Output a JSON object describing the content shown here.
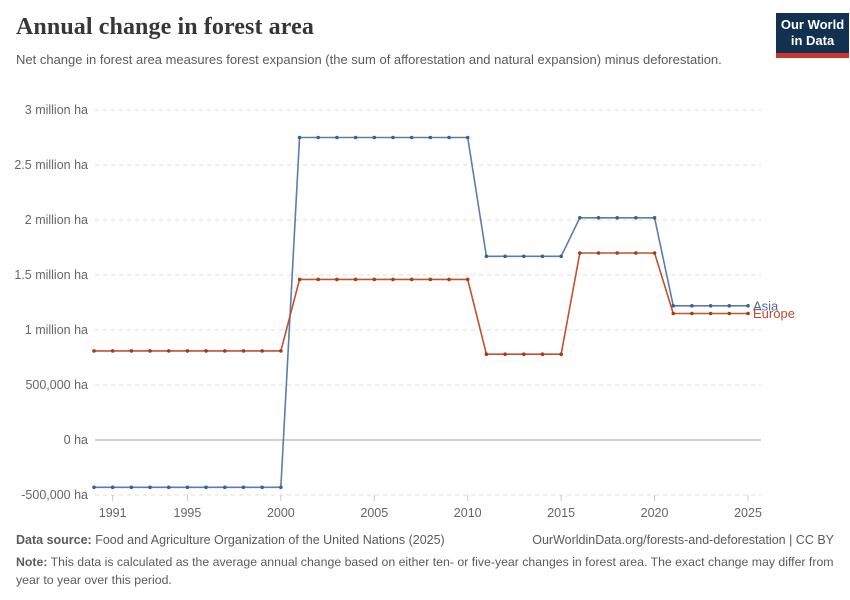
{
  "header": {
    "title": "Annual change in forest area",
    "subtitle": "Net change in forest area measures forest expansion (the sum of afforestation and natural expansion) minus deforestation.",
    "logo": {
      "line1": "Our World",
      "line2": "in Data"
    }
  },
  "colors": {
    "logo_navy": "#12304f",
    "logo_red": "#ce342f",
    "asia_line": "#5b7dab",
    "asia_dot": "#3a5f96",
    "asia_label": "#4c6a9c",
    "europe_line": "#c0522e",
    "europe_dot": "#a03c17",
    "europe_label": "#be4a29",
    "gridline": "#dcdcdc",
    "zero_line": "#9e9e9e",
    "axis_text": "#666666"
  },
  "chart_data": {
    "type": "line",
    "title": "Annual change in forest area",
    "xlabel": "",
    "ylabel": "",
    "xlim": [
      1990,
      2025
    ],
    "ylim": [
      -500000,
      3000000
    ],
    "grid": "dashed-horizontal",
    "legend_position": "right-end-labels",
    "x_ticks": [
      1991,
      1995,
      2000,
      2005,
      2010,
      2015,
      2020,
      2025
    ],
    "y_ticks": [
      {
        "value": 3000000,
        "label": "3 million ha"
      },
      {
        "value": 2500000,
        "label": "2.5 million ha"
      },
      {
        "value": 2000000,
        "label": "2 million ha"
      },
      {
        "value": 1500000,
        "label": "1.5 million ha"
      },
      {
        "value": 1000000,
        "label": "1 million ha"
      },
      {
        "value": 500000,
        "label": "500,000 ha"
      },
      {
        "value": 0,
        "label": "0 ha"
      },
      {
        "value": -500000,
        "label": "-500,000 ha"
      }
    ],
    "x": [
      1990,
      1991,
      1992,
      1993,
      1994,
      1995,
      1996,
      1997,
      1998,
      1999,
      2000,
      2001,
      2002,
      2003,
      2004,
      2005,
      2006,
      2007,
      2008,
      2009,
      2010,
      2011,
      2012,
      2013,
      2014,
      2015,
      2016,
      2017,
      2018,
      2019,
      2020,
      2021,
      2022,
      2023,
      2024,
      2025
    ],
    "series": [
      {
        "name": "Asia",
        "line_color": "#5b7dab",
        "dot_color": "#3a5f96",
        "label_color": "#4c6a9c",
        "values": [
          -430000,
          -430000,
          -430000,
          -430000,
          -430000,
          -430000,
          -430000,
          -430000,
          -430000,
          -430000,
          -430000,
          2750000,
          2750000,
          2750000,
          2750000,
          2750000,
          2750000,
          2750000,
          2750000,
          2750000,
          2750000,
          1670000,
          1670000,
          1670000,
          1670000,
          1670000,
          2020000,
          2020000,
          2020000,
          2020000,
          2020000,
          1220000,
          1220000,
          1220000,
          1220000,
          1220000
        ]
      },
      {
        "name": "Europe",
        "line_color": "#c0522e",
        "dot_color": "#a03c17",
        "label_color": "#be4a29",
        "values": [
          810000,
          810000,
          810000,
          810000,
          810000,
          810000,
          810000,
          810000,
          810000,
          810000,
          810000,
          1460000,
          1460000,
          1460000,
          1460000,
          1460000,
          1460000,
          1460000,
          1460000,
          1460000,
          1460000,
          780000,
          780000,
          780000,
          780000,
          780000,
          1700000,
          1700000,
          1700000,
          1700000,
          1700000,
          1150000,
          1150000,
          1150000,
          1150000,
          1150000
        ]
      }
    ]
  },
  "footer": {
    "source_label": "Data source:",
    "source_text": " Food and Agriculture Organization of the United Nations (2025)",
    "link_text": "OurWorldinData.org/forests-and-deforestation | CC BY",
    "note_label": "Note:",
    "note_text": " This data is calculated as the average annual change based on either ten- or five-year changes in forest area. The exact change may differ from year to year over this period."
  }
}
